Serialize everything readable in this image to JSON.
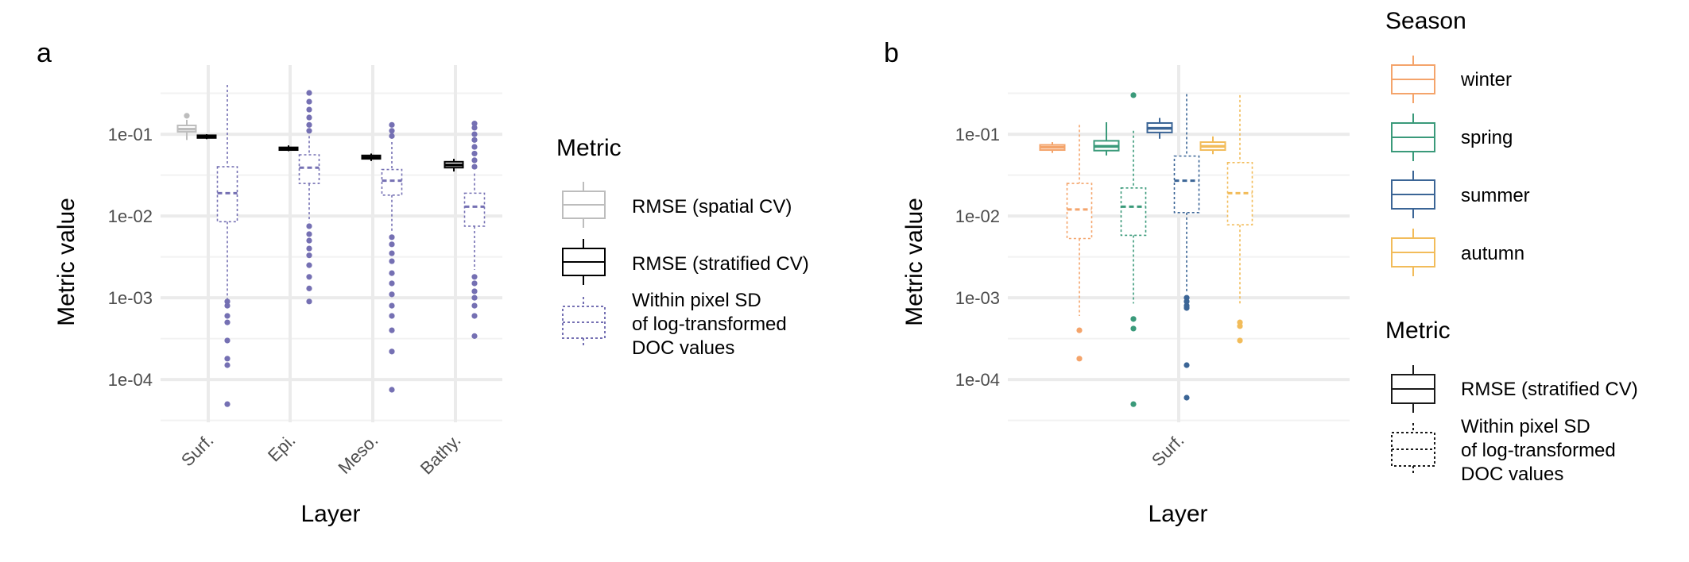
{
  "panels": {
    "a": {
      "label": "a"
    },
    "b": {
      "label": "b"
    }
  },
  "legend_a": {
    "title": "Metric",
    "items": [
      {
        "label_lines": [
          "RMSE (spatial CV)"
        ],
        "color": "#bdbdbd",
        "dashed": false
      },
      {
        "label_lines": [
          "RMSE (stratified CV)"
        ],
        "color": "#000000",
        "dashed": false
      },
      {
        "label_lines": [
          "Within pixel SD",
          "of log-transformed",
          "DOC values"
        ],
        "color": "#7570b3",
        "dashed": true
      }
    ]
  },
  "legend_b_season": {
    "title": "Season",
    "items": [
      {
        "label": "winter",
        "color": "#f4a46b"
      },
      {
        "label": "spring",
        "color": "#3a9a7a"
      },
      {
        "label": "summer",
        "color": "#3b6596"
      },
      {
        "label": "autumn",
        "color": "#f2bc5a"
      }
    ]
  },
  "legend_b_metric": {
    "title": "Metric",
    "items": [
      {
        "label_lines": [
          "RMSE (stratified CV)"
        ],
        "dashed": false
      },
      {
        "label_lines": [
          "Within pixel SD",
          "of log-transformed",
          "DOC values"
        ],
        "dashed": true
      }
    ]
  },
  "chart_data": [
    {
      "type": "box",
      "panel": "a",
      "title": "",
      "xlabel": "Layer",
      "ylabel": "Metric value",
      "y_scale": "log10",
      "ylim": [
        3e-05,
        0.7
      ],
      "y_ticks": [
        0.0001,
        0.001,
        0.01,
        0.1
      ],
      "y_tick_labels": [
        "1e-04",
        "1e-03",
        "1e-02",
        "1e-01"
      ],
      "categories": [
        "Surf.",
        "Epi.",
        "Meso.",
        "Bathy."
      ],
      "grid": true,
      "legend_position": "right",
      "boxes": [
        {
          "category": "Surf.",
          "metric": "RMSE (spatial CV)",
          "color": "#bdbdbd",
          "dashed": false,
          "whisker_low": 0.085,
          "q1": 0.107,
          "median": 0.115,
          "q3": 0.128,
          "whisker_high": 0.15,
          "outliers": [
            0.168
          ]
        },
        {
          "category": "Surf.",
          "metric": "RMSE (stratified CV)",
          "color": "#000000",
          "dashed": false,
          "whisker_low": 0.087,
          "q1": 0.09,
          "median": 0.093,
          "q3": 0.097,
          "whisker_high": 0.1,
          "outliers": []
        },
        {
          "category": "Surf.",
          "metric": "Within pixel SD of log-transformed DOC values",
          "color": "#7570b3",
          "dashed": true,
          "whisker_low": 0.00095,
          "q1": 0.0085,
          "median": 0.019,
          "q3": 0.04,
          "whisker_high": 0.4,
          "outliers": [
            0.0009,
            0.0008,
            0.0006,
            0.0005,
            0.0003,
            0.00018,
            0.00015,
            5e-05
          ]
        },
        {
          "category": "Epi.",
          "metric": "RMSE (stratified CV)",
          "color": "#000000",
          "dashed": false,
          "whisker_low": 0.062,
          "q1": 0.064,
          "median": 0.066,
          "q3": 0.069,
          "whisker_high": 0.073,
          "outliers": []
        },
        {
          "category": "Epi.",
          "metric": "Within pixel SD of log-transformed DOC values",
          "color": "#7570b3",
          "dashed": true,
          "whisker_low": 0.0085,
          "q1": 0.025,
          "median": 0.039,
          "q3": 0.056,
          "whisker_high": 0.095,
          "outliers": [
            0.32,
            0.25,
            0.2,
            0.16,
            0.13,
            0.11,
            0.0075,
            0.006,
            0.005,
            0.004,
            0.0033,
            0.0025,
            0.0018,
            0.0013,
            0.0009
          ]
        },
        {
          "category": "Meso.",
          "metric": "RMSE (stratified CV)",
          "color": "#000000",
          "dashed": false,
          "whisker_low": 0.047,
          "q1": 0.05,
          "median": 0.052,
          "q3": 0.055,
          "whisker_high": 0.058,
          "outliers": []
        },
        {
          "category": "Meso.",
          "metric": "Within pixel SD of log-transformed DOC values",
          "color": "#7570b3",
          "dashed": true,
          "whisker_low": 0.0065,
          "q1": 0.018,
          "median": 0.027,
          "q3": 0.037,
          "whisker_high": 0.08,
          "outliers": [
            0.13,
            0.11,
            0.095,
            0.0055,
            0.0045,
            0.0035,
            0.0028,
            0.002,
            0.0015,
            0.0011,
            0.0008,
            0.0006,
            0.0004,
            0.00022,
            7.5e-05
          ]
        },
        {
          "category": "Bathy.",
          "metric": "RMSE (stratified CV)",
          "color": "#000000",
          "dashed": false,
          "whisker_low": 0.035,
          "q1": 0.039,
          "median": 0.042,
          "q3": 0.046,
          "whisker_high": 0.05,
          "outliers": []
        },
        {
          "category": "Bathy.",
          "metric": "Within pixel SD of log-transformed DOC values",
          "color": "#7570b3",
          "dashed": true,
          "whisker_low": 0.0022,
          "q1": 0.0075,
          "median": 0.013,
          "q3": 0.019,
          "whisker_high": 0.033,
          "outliers": [
            0.135,
            0.12,
            0.1,
            0.085,
            0.07,
            0.058,
            0.048,
            0.04,
            0.0018,
            0.0015,
            0.0012,
            0.001,
            0.0008,
            0.0006,
            0.00034
          ]
        }
      ]
    },
    {
      "type": "box",
      "panel": "b",
      "title": "",
      "xlabel": "Layer",
      "ylabel": "Metric value",
      "y_scale": "log10",
      "ylim": [
        3e-05,
        0.7
      ],
      "y_ticks": [
        0.0001,
        0.001,
        0.01,
        0.1
      ],
      "y_tick_labels": [
        "1e-04",
        "1e-03",
        "1e-02",
        "1e-01"
      ],
      "categories": [
        "Surf."
      ],
      "grid": true,
      "legend_position": "right",
      "boxes": [
        {
          "category": "Surf.",
          "season": "winter",
          "metric": "RMSE (stratified CV)",
          "color": "#f4a46b",
          "dashed": false,
          "whisker_low": 0.059,
          "q1": 0.064,
          "median": 0.069,
          "q3": 0.074,
          "whisker_high": 0.08,
          "outliers": []
        },
        {
          "category": "Surf.",
          "season": "spring",
          "metric": "RMSE (stratified CV)",
          "color": "#3a9a7a",
          "dashed": false,
          "whisker_low": 0.055,
          "q1": 0.063,
          "median": 0.071,
          "q3": 0.083,
          "whisker_high": 0.14,
          "outliers": []
        },
        {
          "category": "Surf.",
          "season": "summer",
          "metric": "RMSE (stratified CV)",
          "color": "#3b6596",
          "dashed": false,
          "whisker_low": 0.088,
          "q1": 0.105,
          "median": 0.118,
          "q3": 0.137,
          "whisker_high": 0.158,
          "outliers": []
        },
        {
          "category": "Surf.",
          "season": "autumn",
          "metric": "RMSE (stratified CV)",
          "color": "#f2bc5a",
          "dashed": false,
          "whisker_low": 0.057,
          "q1": 0.064,
          "median": 0.071,
          "q3": 0.08,
          "whisker_high": 0.094,
          "outliers": []
        },
        {
          "category": "Surf.",
          "season": "winter",
          "metric": "Within pixel SD of log-transformed DOC values",
          "color": "#f4a46b",
          "dashed": true,
          "whisker_low": 0.0006,
          "q1": 0.0053,
          "median": 0.012,
          "q3": 0.025,
          "whisker_high": 0.13,
          "outliers": [
            0.0004,
            0.00018
          ]
        },
        {
          "category": "Surf.",
          "season": "spring",
          "metric": "Within pixel SD of log-transformed DOC values",
          "color": "#3a9a7a",
          "dashed": true,
          "whisker_low": 0.00085,
          "q1": 0.0058,
          "median": 0.013,
          "q3": 0.022,
          "whisker_high": 0.11,
          "outliers": [
            0.3,
            0.00055,
            0.00042,
            5e-05
          ]
        },
        {
          "category": "Surf.",
          "season": "summer",
          "metric": "Within pixel SD of log-transformed DOC values",
          "color": "#3b6596",
          "dashed": true,
          "whisker_low": 0.0012,
          "q1": 0.011,
          "median": 0.027,
          "q3": 0.054,
          "whisker_high": 0.31,
          "outliers": [
            0.001,
            0.0009,
            0.0008,
            0.00075,
            0.00015,
            6e-05
          ]
        },
        {
          "category": "Surf.",
          "season": "autumn",
          "metric": "Within pixel SD of log-transformed DOC values",
          "color": "#f2bc5a",
          "dashed": true,
          "whisker_low": 0.00085,
          "q1": 0.0078,
          "median": 0.019,
          "q3": 0.045,
          "whisker_high": 0.3,
          "outliers": [
            0.0005,
            0.00045,
            0.0003
          ]
        }
      ]
    }
  ]
}
